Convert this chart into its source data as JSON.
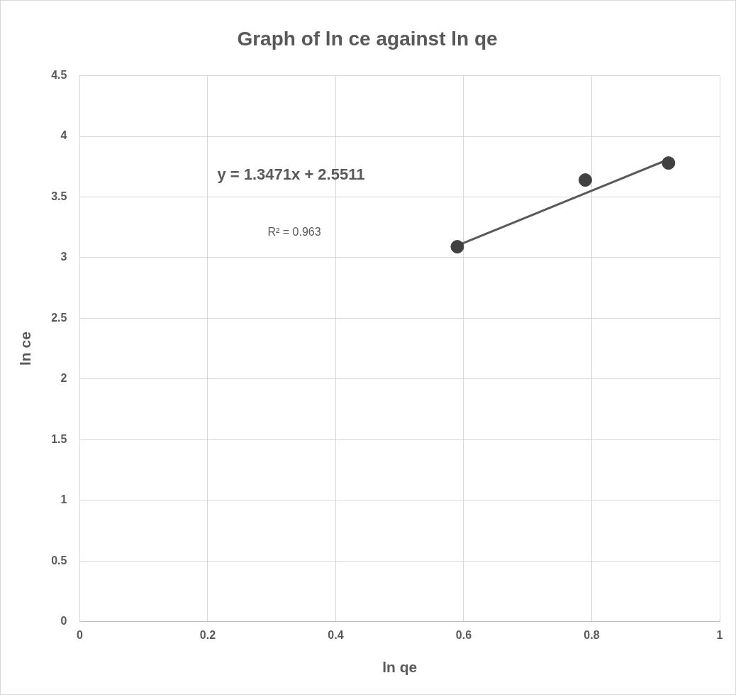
{
  "chart_data": {
    "type": "scatter",
    "title": "Graph of ln ce against ln qe",
    "xlabel": "ln qe",
    "ylabel": "ln ce",
    "xlim": [
      0,
      1
    ],
    "xticks": [
      0,
      0.2,
      0.4,
      0.6,
      0.8,
      1
    ],
    "ylim": [
      0,
      4.5
    ],
    "yticks": [
      0,
      0.5,
      1,
      1.5,
      2,
      2.5,
      3,
      3.5,
      4,
      4.5
    ],
    "grid": true,
    "legend": false,
    "marker": "circle",
    "series": [
      {
        "color": "#404040",
        "x": [
          0.59,
          0.79,
          0.92
        ],
        "values": [
          3.09,
          3.64,
          3.78
        ]
      },
      {
        "type": "line",
        "color": "#595959",
        "x": [
          0.59,
          0.92
        ],
        "values": [
          3.1,
          3.81
        ],
        "marker": "none",
        "line_style": "solid"
      }
    ],
    "annotations": [
      "y = 1.3471x + 2.5511",
      "R² = 0.963"
    ]
  }
}
